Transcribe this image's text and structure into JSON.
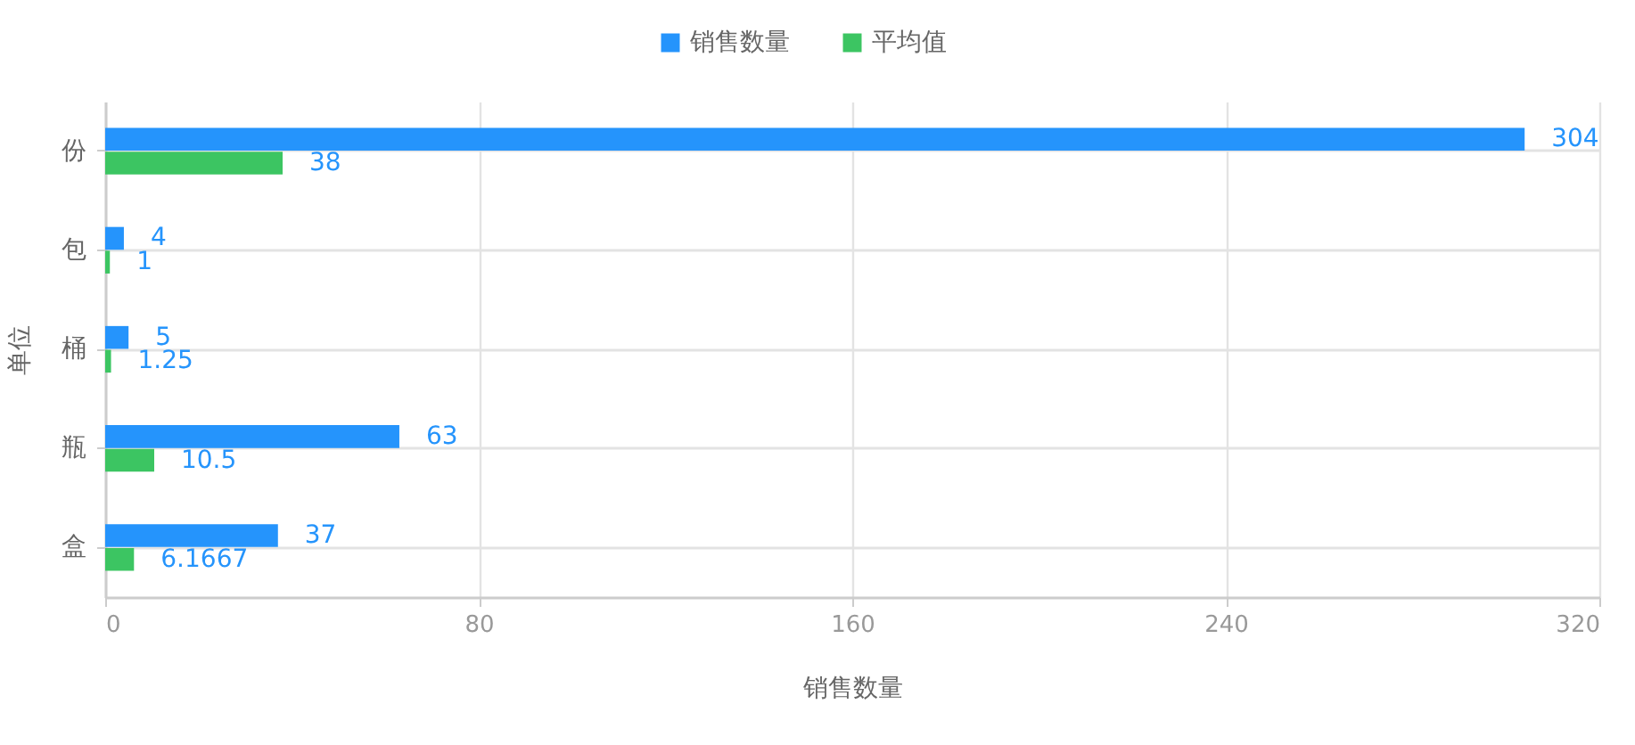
{
  "chart_data": {
    "type": "bar",
    "orientation": "horizontal",
    "categories": [
      "份",
      "包",
      "桶",
      "瓶",
      "盒"
    ],
    "series": [
      {
        "name": "销售数量",
        "color": "#2594fc",
        "values": [
          304,
          4,
          5,
          63,
          37
        ]
      },
      {
        "name": "平均值",
        "color": "#3cc562",
        "values": [
          38,
          1,
          1.25,
          10.5,
          6.1667
        ]
      }
    ],
    "xlabel": "销售数量",
    "ylabel": "单位",
    "xlim": [
      0,
      320
    ],
    "xticks": [
      0,
      80,
      160,
      240,
      320
    ],
    "grid": true,
    "legend": "top",
    "data_labels": true
  }
}
